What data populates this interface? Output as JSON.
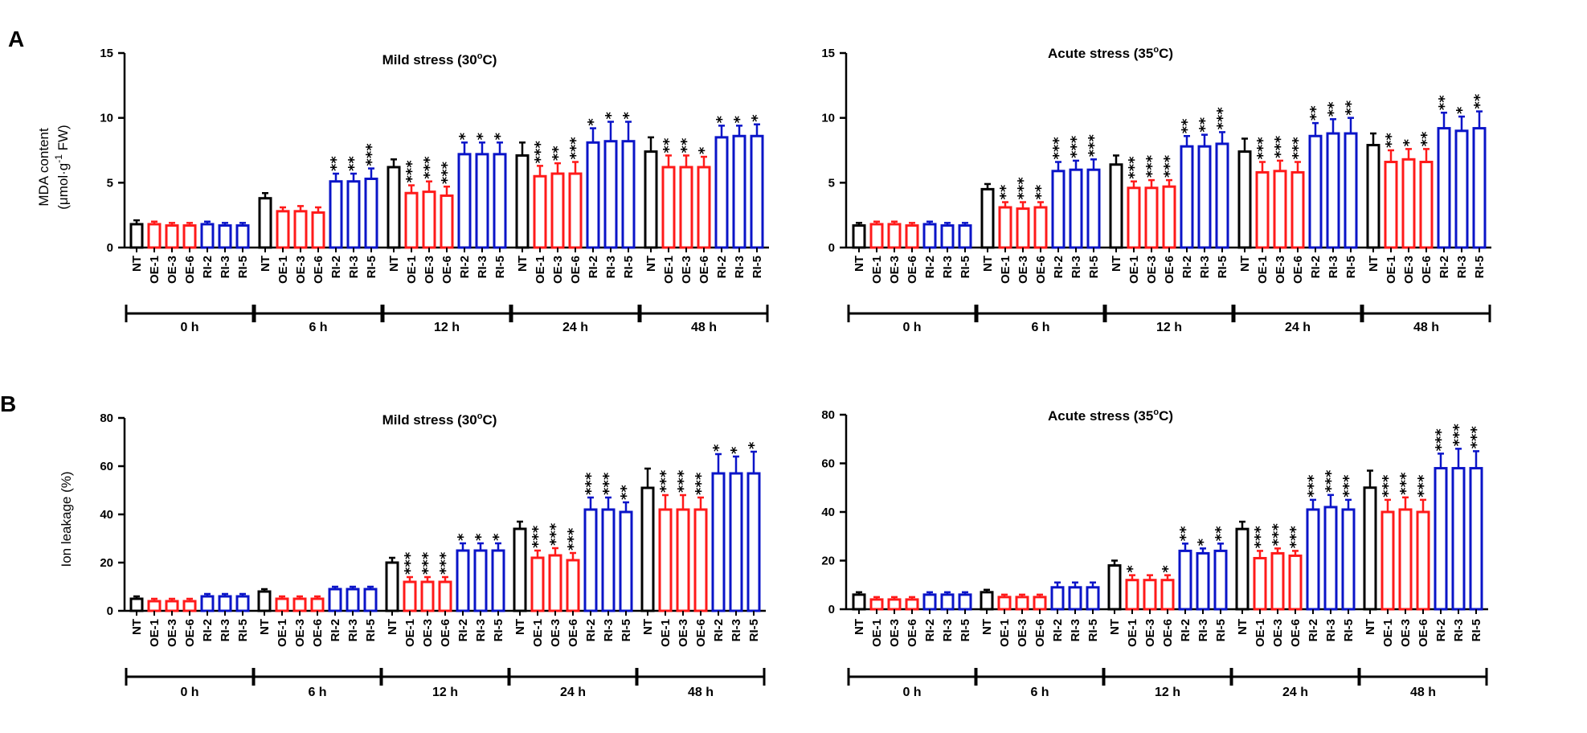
{
  "panel_letters": [
    "A",
    "B"
  ],
  "colors": {
    "NT": "#000000",
    "OE": "#ff1a1a",
    "RI": "#0a14c8",
    "axis": "#000000"
  },
  "chart_data": [
    {
      "id": "A-mild",
      "type": "bar",
      "panel": "A",
      "title": "Mild stress (30",
      "title_sup": "o",
      "title_end": "C)",
      "ylabel_line1": "MDA content",
      "ylabel_line2_pre": "(μmol·g",
      "ylabel_sup": "-1",
      "ylabel_line2_post": " FW)",
      "ylim": [
        0,
        15
      ],
      "yticks": [
        "0",
        "5",
        "10",
        "15"
      ],
      "ytick_values": [
        0,
        5,
        10,
        15
      ],
      "lines": [
        "NT",
        "OE-1",
        "OE-3",
        "OE-6",
        "RI-2",
        "RI-3",
        "RI-5"
      ],
      "groups": [
        {
          "label": "0 h",
          "values": [
            1.8,
            1.8,
            1.7,
            1.7,
            1.8,
            1.7,
            1.7
          ],
          "errors": [
            0.3,
            0.2,
            0.2,
            0.2,
            0.2,
            0.2,
            0.2
          ],
          "sig": [
            "",
            "",
            "",
            "",
            "",
            "",
            ""
          ]
        },
        {
          "label": "6 h",
          "values": [
            3.8,
            2.8,
            2.8,
            2.7,
            5.1,
            5.1,
            5.3
          ],
          "errors": [
            0.4,
            0.3,
            0.4,
            0.4,
            0.6,
            0.6,
            0.8
          ],
          "sig": [
            "",
            "",
            "",
            "",
            "**",
            "**",
            "***"
          ]
        },
        {
          "label": "12 h",
          "values": [
            6.2,
            4.2,
            4.3,
            4.0,
            7.2,
            7.2,
            7.2
          ],
          "errors": [
            0.6,
            0.6,
            0.8,
            0.7,
            0.9,
            0.9,
            0.9
          ],
          "sig": [
            "",
            "***",
            "***",
            "***",
            "*",
            "*",
            "*"
          ]
        },
        {
          "label": "24 h",
          "values": [
            7.1,
            5.5,
            5.7,
            5.7,
            8.1,
            8.2,
            8.2
          ],
          "errors": [
            1.0,
            0.8,
            0.8,
            0.9,
            1.1,
            1.5,
            1.5
          ],
          "sig": [
            "",
            "***",
            "**",
            "***",
            "*",
            "*",
            "*"
          ]
        },
        {
          "label": "48 h",
          "values": [
            7.4,
            6.2,
            6.2,
            6.2,
            8.5,
            8.6,
            8.6
          ],
          "errors": [
            1.1,
            0.9,
            0.9,
            0.8,
            0.9,
            0.8,
            0.9
          ],
          "sig": [
            "",
            "**",
            "**",
            "*",
            "*",
            "*",
            "*"
          ]
        }
      ]
    },
    {
      "id": "A-acute",
      "type": "bar",
      "panel": "A",
      "title": "Acute stress (35",
      "title_sup": "o",
      "title_end": "C)",
      "ylim": [
        0,
        15
      ],
      "yticks": [
        "0",
        "5",
        "10",
        "15"
      ],
      "ytick_values": [
        0,
        5,
        10,
        15
      ],
      "lines": [
        "NT",
        "OE-1",
        "OE-3",
        "OE-6",
        "RI-2",
        "RI-3",
        "RI-5"
      ],
      "groups": [
        {
          "label": "0 h",
          "values": [
            1.7,
            1.8,
            1.8,
            1.7,
            1.8,
            1.7,
            1.7
          ],
          "errors": [
            0.2,
            0.2,
            0.2,
            0.2,
            0.2,
            0.2,
            0.2
          ],
          "sig": [
            "",
            "",
            "",
            "",
            "",
            "",
            ""
          ]
        },
        {
          "label": "6 h",
          "values": [
            4.5,
            3.1,
            3.0,
            3.1,
            5.9,
            6.0,
            6.0
          ],
          "errors": [
            0.4,
            0.4,
            0.5,
            0.4,
            0.7,
            0.7,
            0.8
          ],
          "sig": [
            "",
            "**",
            "***",
            "**",
            "***",
            "***",
            "***"
          ]
        },
        {
          "label": "12 h",
          "values": [
            6.4,
            4.6,
            4.6,
            4.7,
            7.8,
            7.8,
            8.0
          ],
          "errors": [
            0.7,
            0.5,
            0.6,
            0.5,
            0.8,
            0.9,
            0.9
          ],
          "sig": [
            "",
            "***",
            "***",
            "***",
            "**",
            "**",
            "***"
          ]
        },
        {
          "label": "24 h",
          "values": [
            7.4,
            5.8,
            5.9,
            5.8,
            8.6,
            8.8,
            8.8
          ],
          "errors": [
            1.0,
            0.8,
            0.8,
            0.8,
            1.0,
            1.1,
            1.2
          ],
          "sig": [
            "",
            "***",
            "***",
            "***",
            "**",
            "**",
            "**"
          ]
        },
        {
          "label": "48 h",
          "values": [
            7.9,
            6.6,
            6.8,
            6.6,
            9.2,
            9.0,
            9.2
          ],
          "errors": [
            0.9,
            0.9,
            0.8,
            1.0,
            1.2,
            1.1,
            1.3
          ],
          "sig": [
            "",
            "**",
            "*",
            "**",
            "**",
            "*",
            "**"
          ]
        }
      ]
    },
    {
      "id": "B-mild",
      "type": "bar",
      "panel": "B",
      "title": "Mild stress (30",
      "title_sup": "o",
      "title_end": "C)",
      "ylabel": "Ion leakage (%)",
      "ylim": [
        0,
        80
      ],
      "yticks": [
        "0",
        "20",
        "40",
        "60",
        "80"
      ],
      "ytick_values": [
        0,
        20,
        40,
        60,
        80
      ],
      "lines": [
        "NT",
        "OE-1",
        "OE-3",
        "OE-6",
        "RI-2",
        "RI-3",
        "RI-5"
      ],
      "groups": [
        {
          "label": "0 h",
          "values": [
            5,
            4,
            4,
            4,
            6,
            6,
            6
          ],
          "errors": [
            1,
            1,
            1,
            1,
            1,
            1,
            1
          ],
          "sig": [
            "",
            "",
            "",
            "",
            "",
            "",
            ""
          ]
        },
        {
          "label": "6 h",
          "values": [
            8,
            5,
            5,
            5,
            9,
            9,
            9
          ],
          "errors": [
            1,
            1,
            1,
            1,
            1,
            1,
            1
          ],
          "sig": [
            "",
            "",
            "",
            "",
            "",
            "",
            ""
          ]
        },
        {
          "label": "12 h",
          "values": [
            20,
            12,
            12,
            12,
            25,
            25,
            25
          ],
          "errors": [
            2,
            2,
            2,
            2,
            3,
            3,
            3
          ],
          "sig": [
            "",
            "***",
            "***",
            "***",
            "*",
            "*",
            "*"
          ]
        },
        {
          "label": "24 h",
          "values": [
            34,
            22,
            23,
            21,
            42,
            42,
            41
          ],
          "errors": [
            3,
            3,
            3,
            3,
            5,
            5,
            4
          ],
          "sig": [
            "",
            "***",
            "***",
            "***",
            "***",
            "***",
            "**"
          ]
        },
        {
          "label": "48 h",
          "values": [
            51,
            42,
            42,
            42,
            57,
            57,
            57
          ],
          "errors": [
            8,
            6,
            6,
            5,
            8,
            7,
            9
          ],
          "sig": [
            "",
            "***",
            "***",
            "***",
            "*",
            "*",
            "*"
          ]
        }
      ]
    },
    {
      "id": "B-acute",
      "type": "bar",
      "panel": "B",
      "title": "Acute stress (35",
      "title_sup": "o",
      "title_end": "C)",
      "ylim": [
        0,
        80
      ],
      "yticks": [
        "0",
        "20",
        "40",
        "60",
        "80"
      ],
      "ytick_values": [
        0,
        20,
        40,
        60,
        80
      ],
      "lines": [
        "NT",
        "OE-1",
        "OE-3",
        "OE-6",
        "RI-2",
        "RI-3",
        "RI-5"
      ],
      "groups": [
        {
          "label": "0 h",
          "values": [
            6,
            4,
            4,
            4,
            6,
            6,
            6
          ],
          "errors": [
            1,
            1,
            1,
            1,
            1,
            1,
            1
          ],
          "sig": [
            "",
            "",
            "",
            "",
            "",
            "",
            ""
          ]
        },
        {
          "label": "6 h",
          "values": [
            7,
            5,
            5,
            5,
            9,
            9,
            9
          ],
          "errors": [
            1,
            1,
            1,
            1,
            2,
            2,
            2
          ],
          "sig": [
            "",
            "",
            "",
            "",
            "",
            "",
            ""
          ]
        },
        {
          "label": "12 h",
          "values": [
            18,
            12,
            12,
            12,
            24,
            23,
            24
          ],
          "errors": [
            2,
            2,
            2,
            2,
            3,
            2,
            3
          ],
          "sig": [
            "",
            "*",
            "",
            "*",
            "**",
            "*",
            "**"
          ]
        },
        {
          "label": "24 h",
          "values": [
            33,
            21,
            23,
            22,
            41,
            42,
            41
          ],
          "errors": [
            3,
            3,
            2,
            2,
            4,
            5,
            4
          ],
          "sig": [
            "",
            "***",
            "***",
            "***",
            "***",
            "***",
            "***"
          ]
        },
        {
          "label": "48 h",
          "values": [
            50,
            40,
            41,
            40,
            58,
            58,
            58
          ],
          "errors": [
            7,
            5,
            5,
            5,
            6,
            8,
            7
          ],
          "sig": [
            "",
            "***",
            "***",
            "***",
            "***",
            "***",
            "***"
          ]
        }
      ]
    }
  ]
}
